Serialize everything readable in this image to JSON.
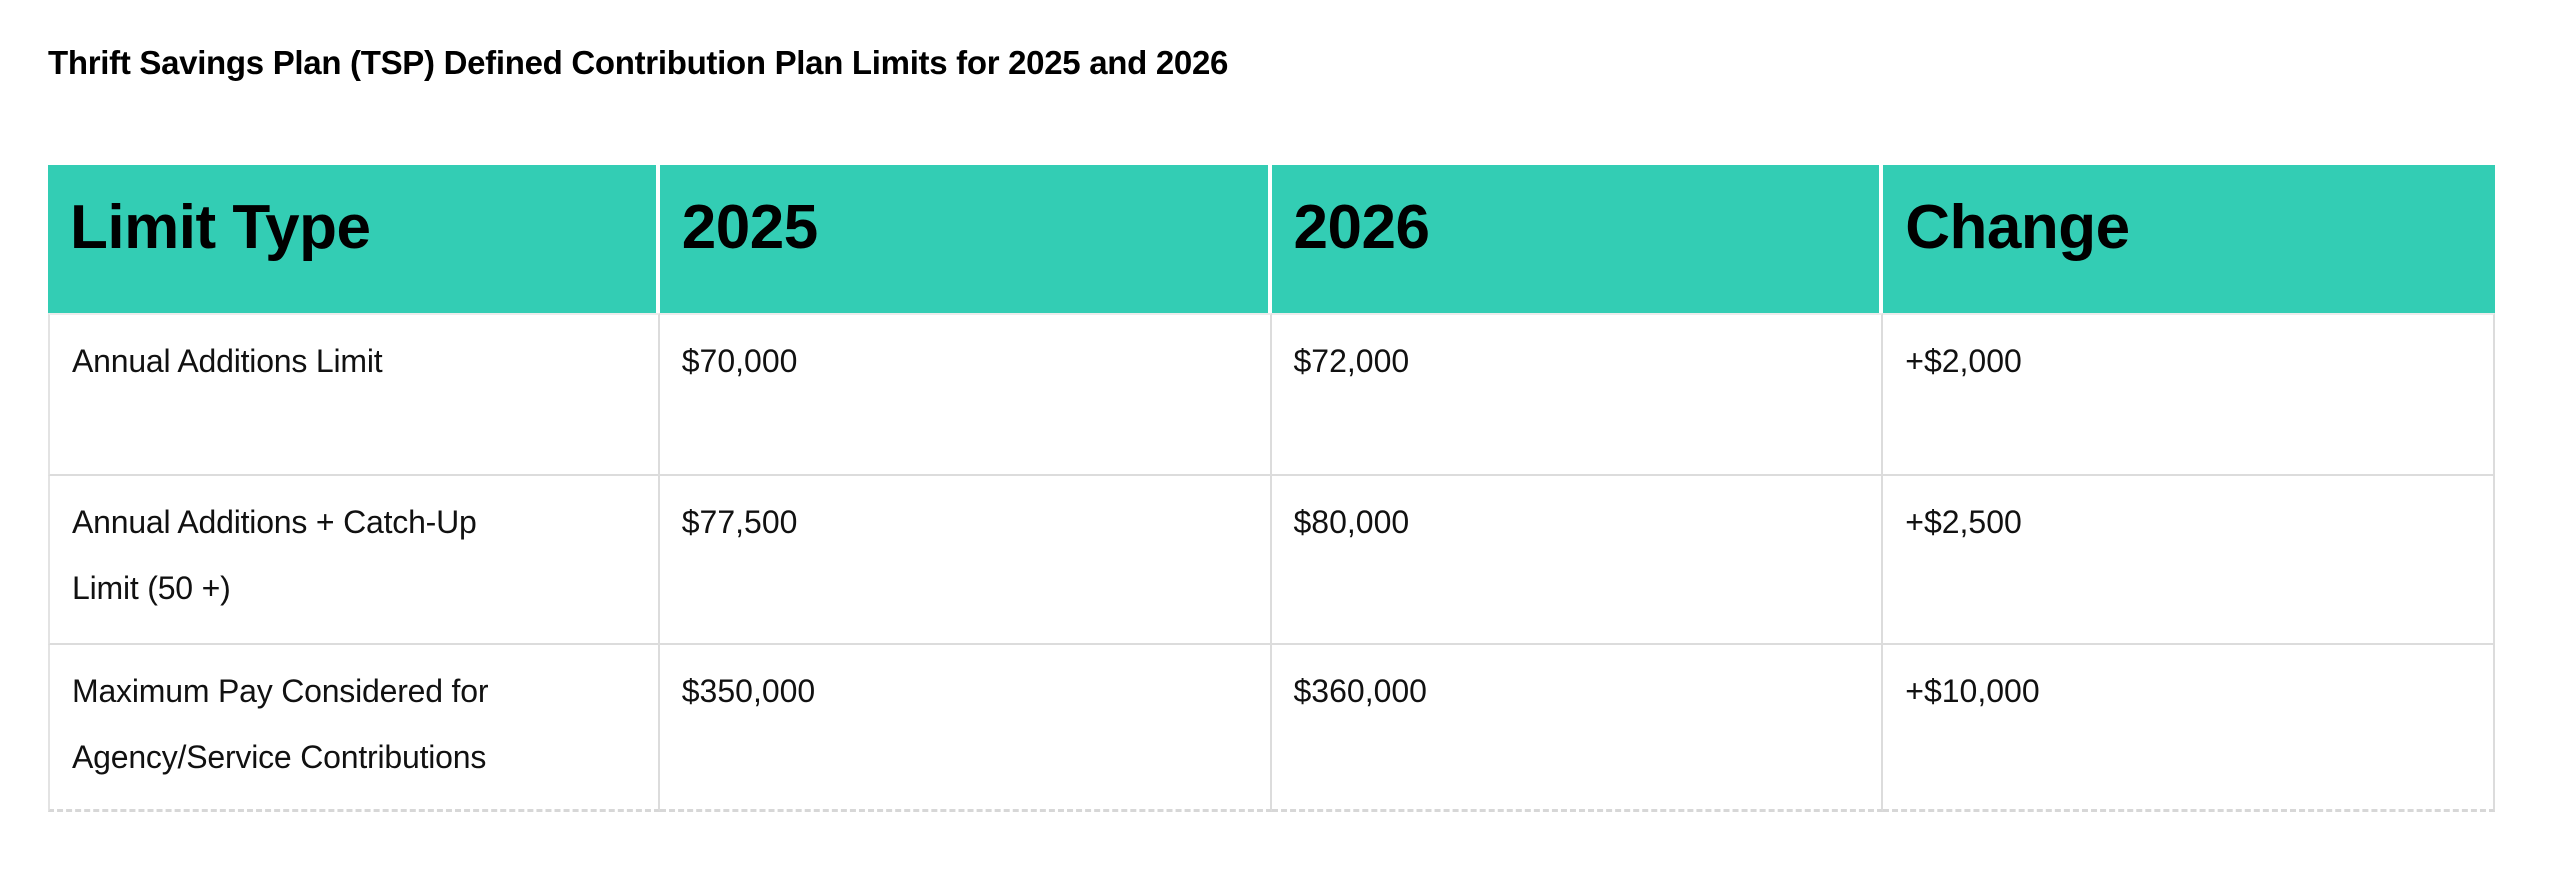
{
  "title": "Thrift Savings Plan (TSP) Defined Contribution Plan Limits for 2025 and 2026",
  "table": {
    "header_bg_color": "#33cdb4",
    "grid_line_color": "#dcdcdc",
    "columns": [
      "Limit Type",
      "2025",
      "2026",
      "Change"
    ],
    "rows": [
      {
        "limit_type": "Annual Additions Limit",
        "y2025": "$70,000",
        "y2026": "$72,000",
        "change": "+$2,000"
      },
      {
        "limit_type": "Annual Additions + Catch-Up\nLimit (50 +)",
        "y2025": "$77,500",
        "y2026": "$80,000",
        "change": "+$2,500"
      },
      {
        "limit_type": "Maximum Pay Considered for\nAgency/Service Contributions",
        "y2025": "$350,000",
        "y2026": "$360,000",
        "change": "+$10,000"
      }
    ]
  },
  "chart_data": {
    "type": "table",
    "title": "Thrift Savings Plan (TSP) Defined Contribution Plan Limits for 2025 and 2026",
    "columns": [
      "Limit Type",
      "2025",
      "2026",
      "Change"
    ],
    "rows": [
      [
        "Annual Additions Limit",
        "$70,000",
        "$72,000",
        "+$2,000"
      ],
      [
        "Annual Additions + Catch-Up Limit (50 +)",
        "$77,500",
        "$80,000",
        "+$2,500"
      ],
      [
        "Maximum Pay Considered for Agency/Service Contributions",
        "$350,000",
        "$360,000",
        "+$10,000"
      ]
    ]
  }
}
